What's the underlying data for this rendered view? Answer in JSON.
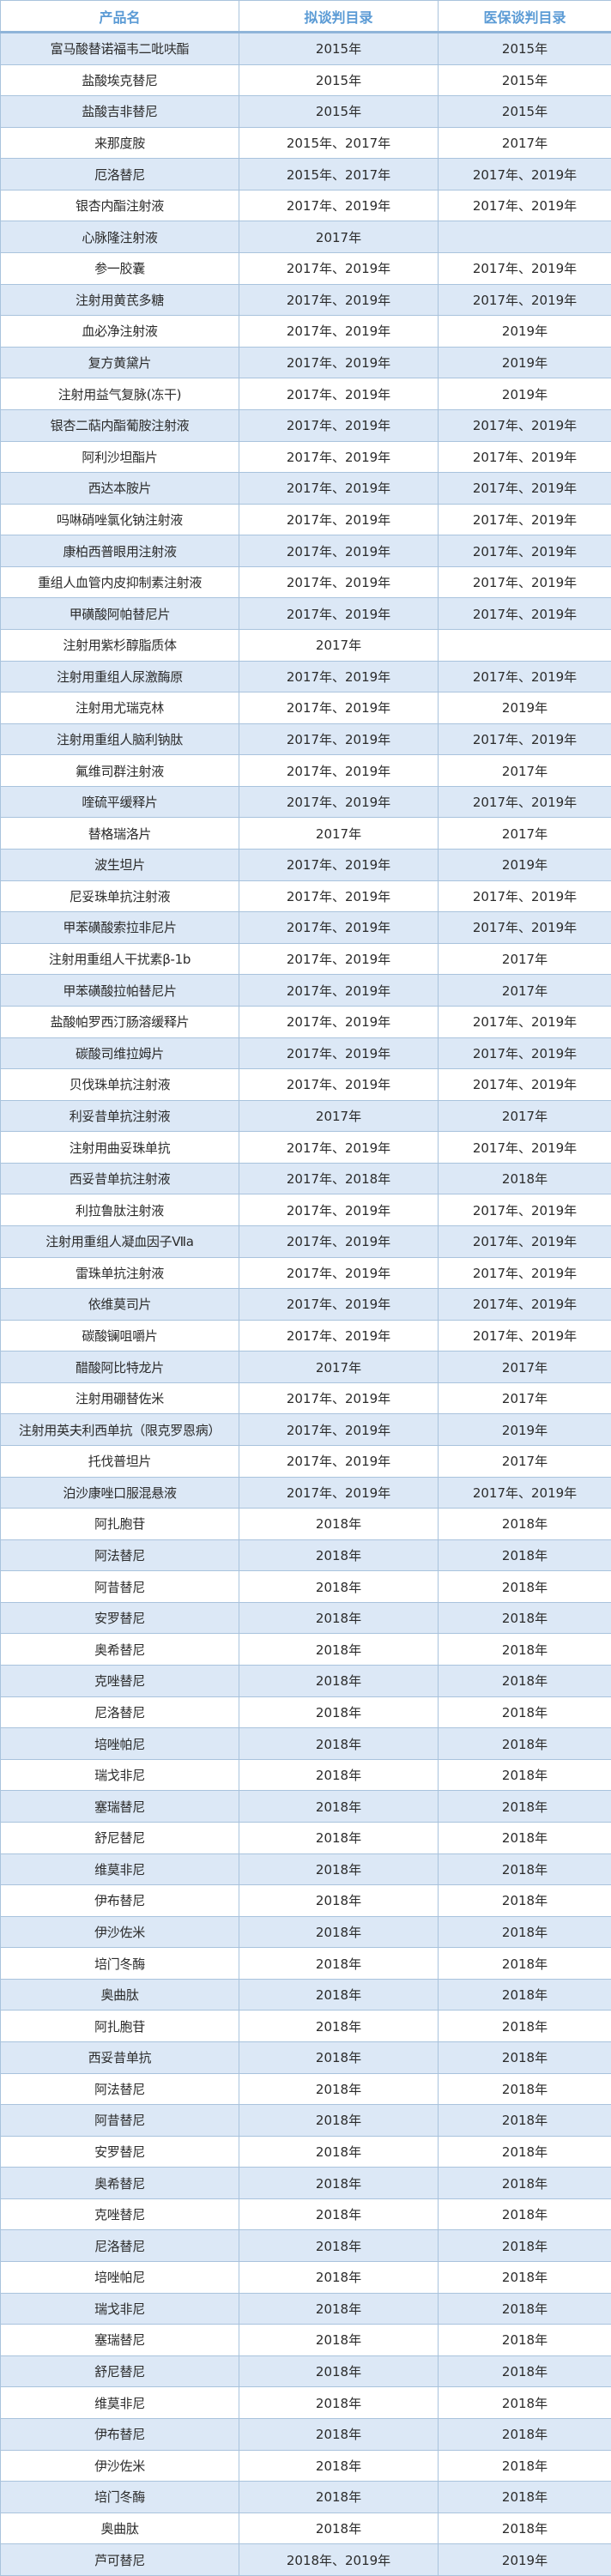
{
  "header": {
    "name": "产品名",
    "proposed": "拟谈判目录",
    "insurance": "医保谈判目录"
  },
  "colors": {
    "header_text": "#5b9bd5",
    "row_alt": "#dce8f6",
    "border": "#a9c3dd"
  },
  "rows": [
    {
      "name": "富马酸替诺福韦二吡呋酯",
      "proposed": "2015年",
      "insurance": "2015年"
    },
    {
      "name": "盐酸埃克替尼",
      "proposed": "2015年",
      "insurance": "2015年"
    },
    {
      "name": "盐酸吉非替尼",
      "proposed": "2015年",
      "insurance": "2015年"
    },
    {
      "name": "来那度胺",
      "proposed": "2015年、2017年",
      "insurance": "2017年"
    },
    {
      "name": "厄洛替尼",
      "proposed": "2015年、2017年",
      "insurance": "2017年、2019年"
    },
    {
      "name": "银杏内酯注射液",
      "proposed": "2017年、2019年",
      "insurance": "2017年、2019年"
    },
    {
      "name": "心脉隆注射液",
      "proposed": "2017年",
      "insurance": ""
    },
    {
      "name": "参一胶囊",
      "proposed": "2017年、2019年",
      "insurance": "2017年、2019年"
    },
    {
      "name": "注射用黄芪多糖",
      "proposed": "2017年、2019年",
      "insurance": "2017年、2019年"
    },
    {
      "name": "血必净注射液",
      "proposed": "2017年、2019年",
      "insurance": "2019年"
    },
    {
      "name": "复方黄黛片",
      "proposed": "2017年、2019年",
      "insurance": "2019年"
    },
    {
      "name": "注射用益气复脉(冻干)",
      "proposed": "2017年、2019年",
      "insurance": "2019年"
    },
    {
      "name": "银杏二萜内酯葡胺注射液",
      "proposed": "2017年、2019年",
      "insurance": "2017年、2019年"
    },
    {
      "name": "阿利沙坦酯片",
      "proposed": "2017年、2019年",
      "insurance": "2017年、2019年"
    },
    {
      "name": "西达本胺片",
      "proposed": "2017年、2019年",
      "insurance": "2017年、2019年"
    },
    {
      "name": "吗啉硝唑氯化钠注射液",
      "proposed": "2017年、2019年",
      "insurance": "2017年、2019年"
    },
    {
      "name": "康柏西普眼用注射液",
      "proposed": "2017年、2019年",
      "insurance": "2017年、2019年"
    },
    {
      "name": "重组人血管内皮抑制素注射液",
      "proposed": "2017年、2019年",
      "insurance": "2017年、2019年"
    },
    {
      "name": "甲磺酸阿帕替尼片",
      "proposed": "2017年、2019年",
      "insurance": "2017年、2019年"
    },
    {
      "name": "注射用紫杉醇脂质体",
      "proposed": "2017年",
      "insurance": ""
    },
    {
      "name": "注射用重组人尿激酶原",
      "proposed": "2017年、2019年",
      "insurance": "2017年、2019年"
    },
    {
      "name": "注射用尤瑞克林",
      "proposed": "2017年、2019年",
      "insurance": "2019年"
    },
    {
      "name": "注射用重组人脑利钠肽",
      "proposed": "2017年、2019年",
      "insurance": "2017年、2019年"
    },
    {
      "name": "氟维司群注射液",
      "proposed": "2017年、2019年",
      "insurance": "2017年"
    },
    {
      "name": "喹硫平缓释片",
      "proposed": "2017年、2019年",
      "insurance": "2017年、2019年"
    },
    {
      "name": "替格瑞洛片",
      "proposed": "2017年",
      "insurance": "2017年"
    },
    {
      "name": "波生坦片",
      "proposed": "2017年、2019年",
      "insurance": "2019年"
    },
    {
      "name": "尼妥珠单抗注射液",
      "proposed": "2017年、2019年",
      "insurance": "2017年、2019年"
    },
    {
      "name": "甲苯磺酸索拉非尼片",
      "proposed": "2017年、2019年",
      "insurance": "2017年、2019年"
    },
    {
      "name": "注射用重组人干扰素β-1b",
      "proposed": "2017年、2019年",
      "insurance": "2017年"
    },
    {
      "name": "甲苯磺酸拉帕替尼片",
      "proposed": "2017年、2019年",
      "insurance": "2017年"
    },
    {
      "name": "盐酸帕罗西汀肠溶缓释片",
      "proposed": "2017年、2019年",
      "insurance": "2017年、2019年"
    },
    {
      "name": "碳酸司维拉姆片",
      "proposed": "2017年、2019年",
      "insurance": "2017年、2019年"
    },
    {
      "name": "贝伐珠单抗注射液",
      "proposed": "2017年、2019年",
      "insurance": "2017年、2019年"
    },
    {
      "name": "利妥昔单抗注射液",
      "proposed": "2017年",
      "insurance": "2017年"
    },
    {
      "name": "注射用曲妥珠单抗",
      "proposed": "2017年、2019年",
      "insurance": "2017年、2019年"
    },
    {
      "name": "西妥昔单抗注射液",
      "proposed": "2017年、2018年",
      "insurance": "2018年"
    },
    {
      "name": "利拉鲁肽注射液",
      "proposed": "2017年、2019年",
      "insurance": "2017年、2019年"
    },
    {
      "name": "注射用重组人凝血因子Ⅶa",
      "proposed": "2017年、2019年",
      "insurance": "2017年、2019年"
    },
    {
      "name": "雷珠单抗注射液",
      "proposed": "2017年、2019年",
      "insurance": "2017年、2019年"
    },
    {
      "name": "依维莫司片",
      "proposed": "2017年、2019年",
      "insurance": "2017年、2019年"
    },
    {
      "name": "碳酸镧咀嚼片",
      "proposed": "2017年、2019年",
      "insurance": "2017年、2019年"
    },
    {
      "name": "醋酸阿比特龙片",
      "proposed": "2017年",
      "insurance": "2017年"
    },
    {
      "name": "注射用硼替佐米",
      "proposed": "2017年、2019年",
      "insurance": "2017年"
    },
    {
      "name": "注射用英夫利西单抗（限克罗恩病）",
      "proposed": "2017年、2019年",
      "insurance": "2019年"
    },
    {
      "name": "托伐普坦片",
      "proposed": "2017年、2019年",
      "insurance": "2017年"
    },
    {
      "name": "泊沙康唑口服混悬液",
      "proposed": "2017年、2019年",
      "insurance": "2017年、2019年"
    },
    {
      "name": "阿扎胞苷",
      "proposed": "2018年",
      "insurance": "2018年"
    },
    {
      "name": "阿法替尼",
      "proposed": "2018年",
      "insurance": "2018年"
    },
    {
      "name": "阿昔替尼",
      "proposed": "2018年",
      "insurance": "2018年"
    },
    {
      "name": "安罗替尼",
      "proposed": "2018年",
      "insurance": "2018年"
    },
    {
      "name": "奥希替尼",
      "proposed": "2018年",
      "insurance": "2018年"
    },
    {
      "name": "克唑替尼",
      "proposed": "2018年",
      "insurance": "2018年"
    },
    {
      "name": "尼洛替尼",
      "proposed": "2018年",
      "insurance": "2018年"
    },
    {
      "name": "培唑帕尼",
      "proposed": "2018年",
      "insurance": "2018年"
    },
    {
      "name": "瑞戈非尼",
      "proposed": "2018年",
      "insurance": "2018年"
    },
    {
      "name": "塞瑞替尼",
      "proposed": "2018年",
      "insurance": "2018年"
    },
    {
      "name": "舒尼替尼",
      "proposed": "2018年",
      "insurance": "2018年"
    },
    {
      "name": "维莫非尼",
      "proposed": "2018年",
      "insurance": "2018年"
    },
    {
      "name": "伊布替尼",
      "proposed": "2018年",
      "insurance": "2018年"
    },
    {
      "name": "伊沙佐米",
      "proposed": "2018年",
      "insurance": "2018年"
    },
    {
      "name": "培门冬酶",
      "proposed": "2018年",
      "insurance": "2018年"
    },
    {
      "name": "奥曲肽",
      "proposed": "2018年",
      "insurance": "2018年"
    },
    {
      "name": "阿扎胞苷",
      "proposed": "2018年",
      "insurance": "2018年"
    },
    {
      "name": "西妥昔单抗",
      "proposed": "2018年",
      "insurance": "2018年"
    },
    {
      "name": "阿法替尼",
      "proposed": "2018年",
      "insurance": "2018年"
    },
    {
      "name": "阿昔替尼",
      "proposed": "2018年",
      "insurance": "2018年"
    },
    {
      "name": "安罗替尼",
      "proposed": "2018年",
      "insurance": "2018年"
    },
    {
      "name": "奥希替尼",
      "proposed": "2018年",
      "insurance": "2018年"
    },
    {
      "name": "克唑替尼",
      "proposed": "2018年",
      "insurance": "2018年"
    },
    {
      "name": "尼洛替尼",
      "proposed": "2018年",
      "insurance": "2018年"
    },
    {
      "name": "培唑帕尼",
      "proposed": "2018年",
      "insurance": "2018年"
    },
    {
      "name": "瑞戈非尼",
      "proposed": "2018年",
      "insurance": "2018年"
    },
    {
      "name": "塞瑞替尼",
      "proposed": "2018年",
      "insurance": "2018年"
    },
    {
      "name": "舒尼替尼",
      "proposed": "2018年",
      "insurance": "2018年"
    },
    {
      "name": "维莫非尼",
      "proposed": "2018年",
      "insurance": "2018年"
    },
    {
      "name": "伊布替尼",
      "proposed": "2018年",
      "insurance": "2018年"
    },
    {
      "name": "伊沙佐米",
      "proposed": "2018年",
      "insurance": "2018年"
    },
    {
      "name": "培门冬酶",
      "proposed": "2018年",
      "insurance": "2018年"
    },
    {
      "name": "奥曲肽",
      "proposed": "2018年",
      "insurance": "2018年"
    },
    {
      "name": "芦可替尼",
      "proposed": "2018年、2019年",
      "insurance": "2019年"
    }
  ]
}
